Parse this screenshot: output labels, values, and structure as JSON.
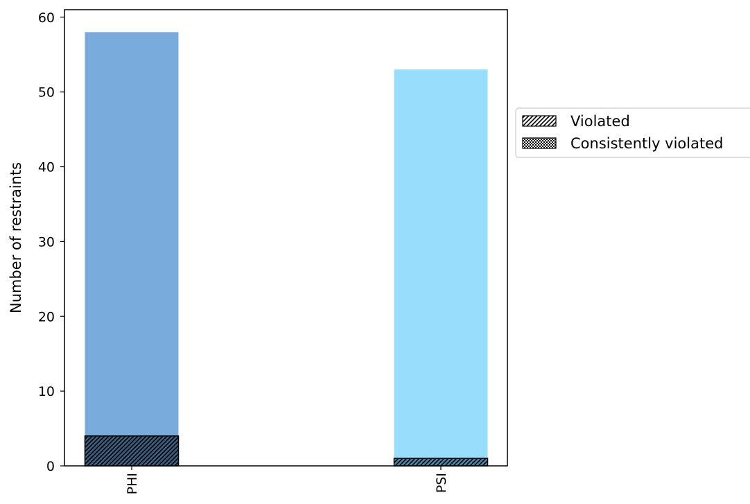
{
  "chart_data": {
    "type": "bar",
    "categories": [
      "PHI",
      "PSI"
    ],
    "series": [
      {
        "values": [
          58,
          53
        ],
        "colors": [
          "#79acdc",
          "#99ddfc"
        ]
      },
      {
        "name": "Violated",
        "values": [
          4,
          1
        ],
        "hatch": "diagonal"
      },
      {
        "name": "Consistently violated",
        "values": [
          0,
          0
        ],
        "hatch": "dots"
      }
    ],
    "xlabel": "",
    "ylabel": "Number of restraints",
    "ylim": [
      0,
      61
    ],
    "yticks": [
      0,
      10,
      20,
      30,
      40,
      50,
      60
    ],
    "grid": false,
    "legend_position": "outside-right"
  }
}
